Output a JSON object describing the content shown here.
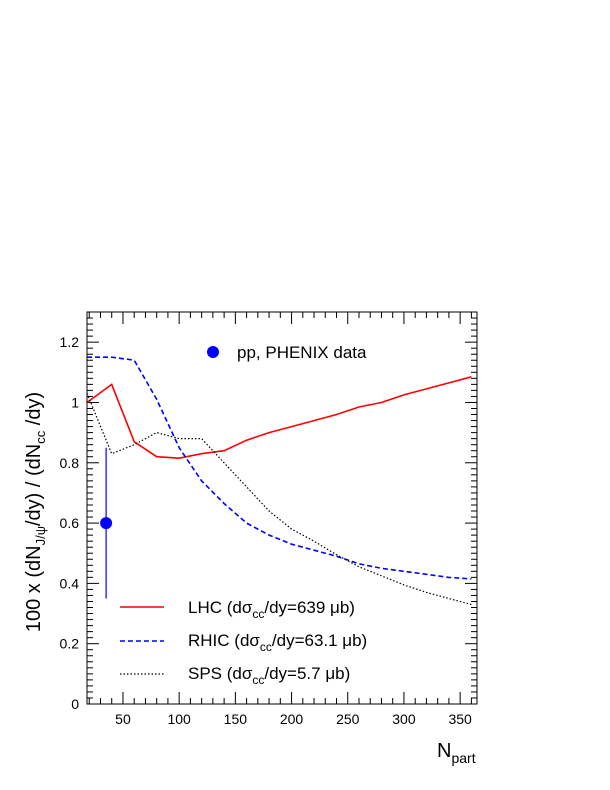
{
  "chart_data": {
    "type": "line",
    "title": "",
    "xlim": [
      18,
      365
    ],
    "ylim": [
      0,
      1.3
    ],
    "x_ticks": [
      50,
      100,
      150,
      200,
      250,
      300,
      350
    ],
    "y_ticks": [
      0,
      0.2,
      0.4,
      0.6,
      0.8,
      1,
      1.2
    ],
    "x_tick_labels": [
      "50",
      "100",
      "150",
      "200",
      "250",
      "300",
      "350"
    ],
    "y_tick_labels": [
      "0",
      "0.2",
      "0.4",
      "0.6",
      "0.8",
      "1",
      "1.2"
    ],
    "xlabel": {
      "main": "N",
      "sub": "part"
    },
    "ylabel": {
      "p1": "100 x (dN",
      "s1": "J/ψ",
      "p2": "/dy) / (dN",
      "s2": "cc",
      "p3": " /dy)"
    },
    "grid": false,
    "legend_position": "bottom-left",
    "series": [
      {
        "key": "lhc",
        "legend": {
          "a": "LHC (dσ",
          "sub": "cc",
          "b": "/dy=639 μb)"
        },
        "color": "#ff0000",
        "line_style": "solid",
        "x": [
          18,
          40,
          60,
          80,
          100,
          120,
          140,
          160,
          180,
          200,
          220,
          240,
          260,
          280,
          300,
          320,
          340,
          360
        ],
        "y": [
          1.0,
          1.06,
          0.87,
          0.82,
          0.815,
          0.83,
          0.84,
          0.875,
          0.9,
          0.92,
          0.94,
          0.96,
          0.985,
          1.0,
          1.025,
          1.045,
          1.065,
          1.085
        ]
      },
      {
        "key": "rhic",
        "legend": {
          "a": "RHIC (dσ",
          "sub": "cc",
          "b": "/dy=63.1 μb)"
        },
        "color": "#0000ff",
        "line_style": "dashed",
        "x": [
          18,
          40,
          60,
          80,
          100,
          120,
          140,
          160,
          180,
          200,
          220,
          240,
          260,
          280,
          300,
          320,
          340,
          360
        ],
        "y": [
          1.15,
          1.15,
          1.14,
          1.01,
          0.85,
          0.74,
          0.665,
          0.6,
          0.56,
          0.53,
          0.51,
          0.49,
          0.465,
          0.45,
          0.44,
          0.43,
          0.42,
          0.415
        ]
      },
      {
        "key": "sps",
        "legend": {
          "a": "SPS (dσ",
          "sub": "cc",
          "b": "/dy=5.7 μb)"
        },
        "color": "#000000",
        "line_style": "dotted",
        "x": [
          18,
          40,
          60,
          80,
          100,
          120,
          140,
          160,
          180,
          200,
          220,
          240,
          260,
          280,
          300,
          320,
          340,
          360
        ],
        "y": [
          1.03,
          0.83,
          0.86,
          0.9,
          0.88,
          0.88,
          0.8,
          0.72,
          0.64,
          0.58,
          0.54,
          0.495,
          0.455,
          0.425,
          0.395,
          0.37,
          0.35,
          0.33
        ]
      }
    ],
    "data_point": {
      "label": "pp, PHENIX data",
      "x": 35,
      "y": 0.6,
      "y_low": 0.35,
      "y_high": 0.85,
      "color": "#0000ff"
    }
  }
}
